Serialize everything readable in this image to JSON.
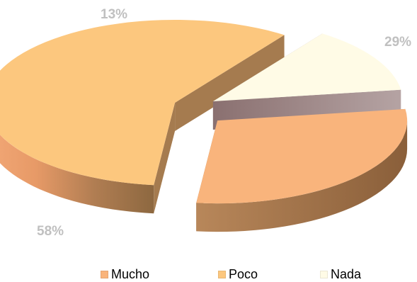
{
  "chart_data": {
    "type": "pie",
    "three_d": true,
    "exploded": true,
    "title": "",
    "categories": [
      "Mucho",
      "Poco",
      "Nada"
    ],
    "values": [
      29,
      58,
      13
    ],
    "data_labels": [
      "29%",
      "58%",
      "13%"
    ],
    "legend": {
      "position": "bottom",
      "entries": [
        "Mucho",
        "Poco",
        "Nada"
      ]
    },
    "colors": [
      "#f9b47c",
      "#fcc77e",
      "#fffbe6"
    ],
    "side_colors": [
      "#9c6e45",
      "#a57b4f",
      "#a49494"
    ],
    "label_color": "#c0c0c0"
  }
}
